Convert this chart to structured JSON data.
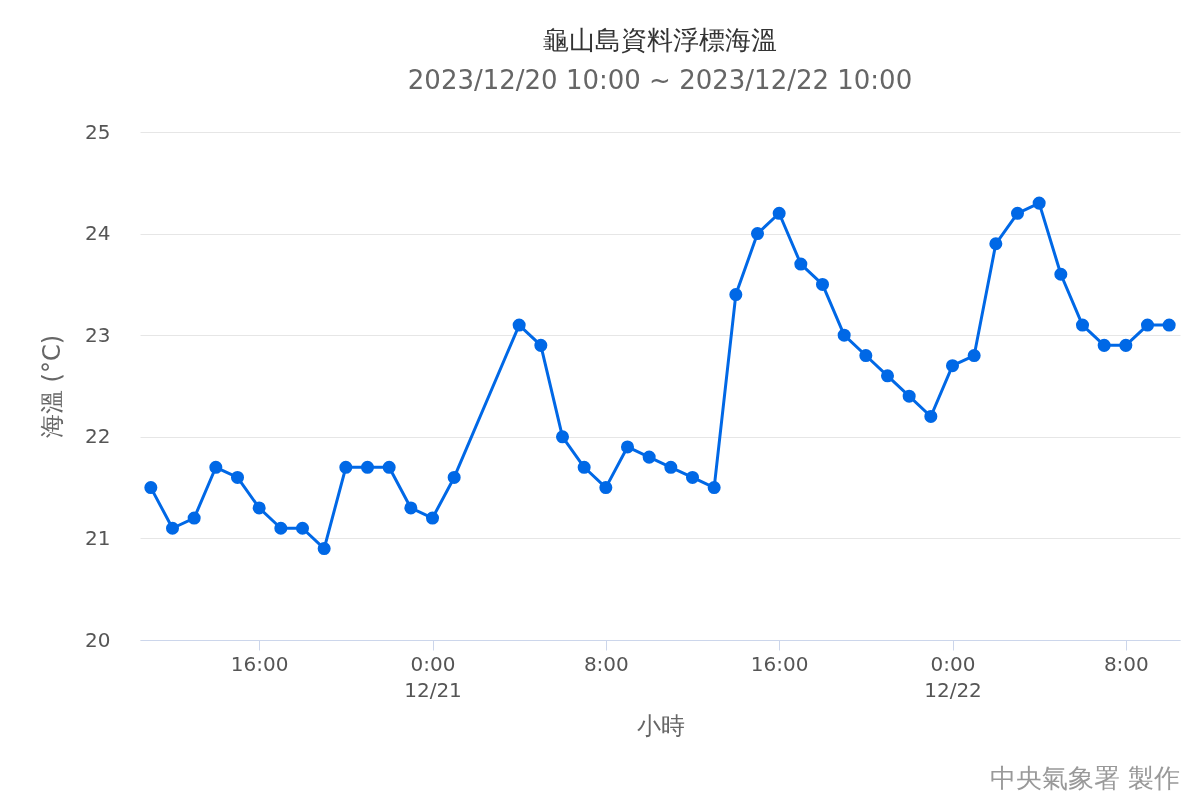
{
  "chart_data": {
    "type": "line",
    "title": "龜山島資料浮標海溫",
    "subtitle": "2023/12/20 10:00 ~ 2023/12/22 10:00",
    "xlabel": "小時",
    "ylabel": "海溫 (°C)",
    "x": [
      "2023-12-20T11:00",
      "2023-12-20T12:00",
      "2023-12-20T13:00",
      "2023-12-20T14:00",
      "2023-12-20T15:00",
      "2023-12-20T16:00",
      "2023-12-20T17:00",
      "2023-12-20T18:00",
      "2023-12-20T19:00",
      "2023-12-20T20:00",
      "2023-12-20T21:00",
      "2023-12-20T22:00",
      "2023-12-20T23:00",
      "2023-12-21T00:00",
      "2023-12-21T01:00",
      "2023-12-21T04:00",
      "2023-12-21T05:00",
      "2023-12-21T06:00",
      "2023-12-21T07:00",
      "2023-12-21T08:00",
      "2023-12-21T09:00",
      "2023-12-21T10:00",
      "2023-12-21T11:00",
      "2023-12-21T12:00",
      "2023-12-21T13:00",
      "2023-12-21T14:00",
      "2023-12-21T15:00",
      "2023-12-21T16:00",
      "2023-12-21T17:00",
      "2023-12-21T18:00",
      "2023-12-21T19:00",
      "2023-12-21T20:00",
      "2023-12-21T21:00",
      "2023-12-21T22:00",
      "2023-12-21T23:00",
      "2023-12-22T00:00",
      "2023-12-22T01:00",
      "2023-12-22T02:00",
      "2023-12-22T03:00",
      "2023-12-22T04:00",
      "2023-12-22T05:00",
      "2023-12-22T06:00",
      "2023-12-22T07:00",
      "2023-12-22T08:00",
      "2023-12-22T09:00",
      "2023-12-22T10:00"
    ],
    "series": [
      {
        "color": "#0068e6",
        "values": [
          21.5,
          21.1,
          21.2,
          21.7,
          21.6,
          21.3,
          21.1,
          21.1,
          20.9,
          21.7,
          21.7,
          21.7,
          21.3,
          21.2,
          21.6,
          23.1,
          22.9,
          22.0,
          21.7,
          21.5,
          21.9,
          21.8,
          21.7,
          21.6,
          21.5,
          23.4,
          24.0,
          24.2,
          23.7,
          23.5,
          23.0,
          22.8,
          22.6,
          22.4,
          22.2,
          22.7,
          22.8,
          23.9,
          24.2,
          24.3,
          23.6,
          23.1,
          22.9,
          22.9,
          23.1,
          23.1
        ]
      }
    ],
    "xlim": [
      "2023-12-20T10:30",
      "2023-12-22T10:30"
    ],
    "xticks": [
      {
        "value": "2023-12-20T16:00",
        "label": "16:00"
      },
      {
        "value": "2023-12-21T00:00",
        "label": "0:00\n12/21"
      },
      {
        "value": "2023-12-21T08:00",
        "label": "8:00"
      },
      {
        "value": "2023-12-21T16:00",
        "label": "16:00"
      },
      {
        "value": "2023-12-22T00:00",
        "label": "0:00\n12/22"
      },
      {
        "value": "2023-12-22T08:00",
        "label": "8:00"
      }
    ],
    "ylim": [
      20,
      25
    ],
    "yticks": [
      20,
      21,
      22,
      23,
      24,
      25
    ],
    "grid": "y",
    "marker": "circle",
    "line_style": "solid",
    "annotations": [
      "中央氣象署 製作"
    ]
  }
}
